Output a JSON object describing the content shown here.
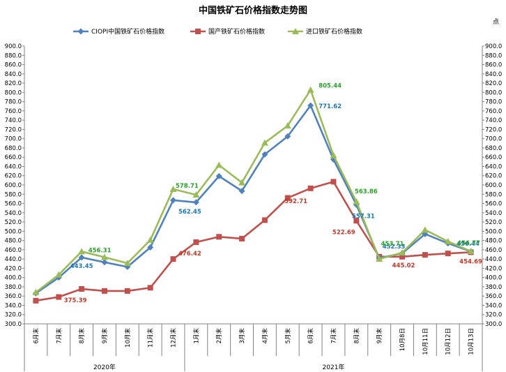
{
  "chart_data": {
    "type": "line",
    "title": "中国铁矿石价格指数走势图",
    "unit_label": "点",
    "categories": [
      "6月末",
      "7月末",
      "8月末",
      "9月末",
      "10月末",
      "11月末",
      "12月末",
      "1月末",
      "2月末",
      "3月末",
      "4月末",
      "5月末",
      "6月末",
      "7月末",
      "8月末",
      "9月末",
      "10月8日",
      "10月11日",
      "10月12日",
      "10月13日"
    ],
    "year_groups": [
      {
        "label": "2020年",
        "start": 0,
        "end": 6
      },
      {
        "label": "2021年",
        "start": 7,
        "end": 19
      }
    ],
    "ylim": [
      300,
      900
    ],
    "ytick_step": 20,
    "ytick_labels": [
      "300.0",
      "320.0",
      "340.0",
      "360.0",
      "380.0",
      "400.0",
      "420.0",
      "440.0",
      "460.0",
      "480.0",
      "500.0",
      "520.0",
      "540.0",
      "560.0",
      "580.0",
      "600.0",
      "620.0",
      "640.0",
      "660.0",
      "680.0",
      "700.0",
      "720.0",
      "740.0",
      "760.0",
      "780.0",
      "800.0",
      "820.0",
      "840.0",
      "860.0",
      "880.0",
      "900.0"
    ],
    "legend_position": "top",
    "grid": false,
    "series": [
      {
        "name": "CIOPI中国铁矿石价格指数",
        "color": "#4F81BD",
        "marker": "diamond",
        "values": [
          366,
          400,
          443.45,
          433,
          423,
          465,
          567,
          562.45,
          619,
          587,
          666,
          705,
          771.62,
          655,
          557.31,
          442,
          452.33,
          494,
          474,
          456.44
        ],
        "labels": [
          {
            "index": 2,
            "text": "443.45"
          },
          {
            "index": 7,
            "text": "562.45"
          },
          {
            "index": 12,
            "text": "771.62"
          },
          {
            "index": 14,
            "text": "557.31"
          },
          {
            "index": 16,
            "text": "452.33"
          },
          {
            "index": 19,
            "text": "456.44"
          }
        ]
      },
      {
        "name": "国产铁矿石价格指数",
        "color": "#C0504D",
        "marker": "square",
        "values": [
          350,
          358,
          375.39,
          371,
          371,
          378,
          440,
          476.42,
          488,
          484,
          524,
          572,
          592.71,
          607,
          522.69,
          445,
          445.02,
          449,
          452,
          454.69
        ],
        "labels": [
          {
            "index": 2,
            "text": "375.39"
          },
          {
            "index": 7,
            "text": "476.42"
          },
          {
            "index": 12,
            "text": "592.71"
          },
          {
            "index": 14,
            "text": "522.69"
          },
          {
            "index": 16,
            "text": "445.02"
          },
          {
            "index": 19,
            "text": "454.69"
          }
        ]
      },
      {
        "name": "进口铁矿石价格指数",
        "color": "#9BBB59",
        "marker": "triangle",
        "values": [
          368,
          406,
          456.31,
          444,
          431,
          481,
          591,
          578.71,
          643,
          605,
          691,
          728,
          805.44,
          664,
          563.86,
          440,
          453.71,
          503,
          478,
          456.77
        ],
        "labels": [
          {
            "index": 2,
            "text": "456.31"
          },
          {
            "index": 7,
            "text": "578.71"
          },
          {
            "index": 12,
            "text": "805.44"
          },
          {
            "index": 14,
            "text": "563.86"
          },
          {
            "index": 16,
            "text": "453.71"
          },
          {
            "index": 19,
            "text": "456.77"
          }
        ]
      }
    ]
  }
}
